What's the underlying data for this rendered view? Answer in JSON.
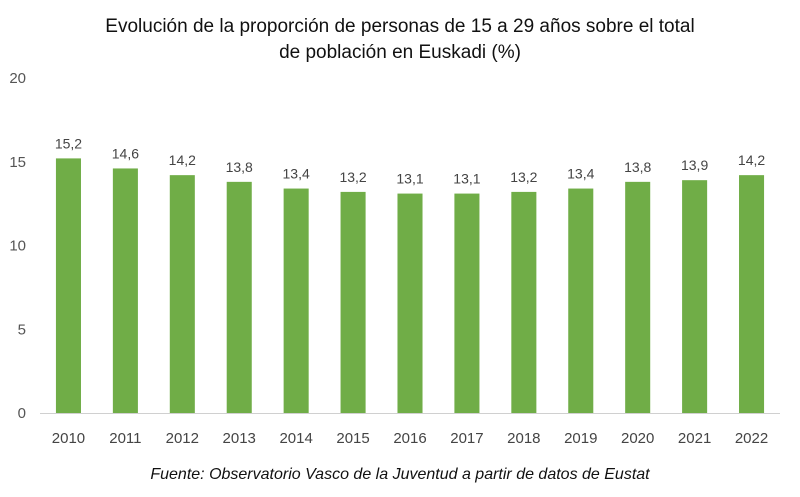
{
  "chart_data": {
    "type": "bar",
    "title_lines": [
      "Evolución de la proporción de personas de 15 a 29 años sobre el total",
      "de población en Euskadi (%)"
    ],
    "categories": [
      "2010",
      "2011",
      "2012",
      "2013",
      "2014",
      "2015",
      "2016",
      "2017",
      "2018",
      "2019",
      "2020",
      "2021",
      "2022"
    ],
    "values": [
      15.2,
      14.6,
      14.2,
      13.8,
      13.4,
      13.2,
      13.1,
      13.1,
      13.2,
      13.4,
      13.8,
      13.9,
      14.2
    ],
    "data_labels": [
      "15,2",
      "14,6",
      "14,2",
      "13,8",
      "13,4",
      "13,2",
      "13,1",
      "13,1",
      "13,2",
      "13,4",
      "13,8",
      "13,9",
      "14,2"
    ],
    "yticks": [
      0,
      5,
      10,
      15,
      20
    ],
    "ylim": [
      0,
      20
    ],
    "xlabel": "",
    "ylabel": "",
    "grid": false,
    "bar_color": "#70ad47"
  },
  "source": "Fuente: Observatorio Vasco de la Juventud a partir de datos de Eustat"
}
